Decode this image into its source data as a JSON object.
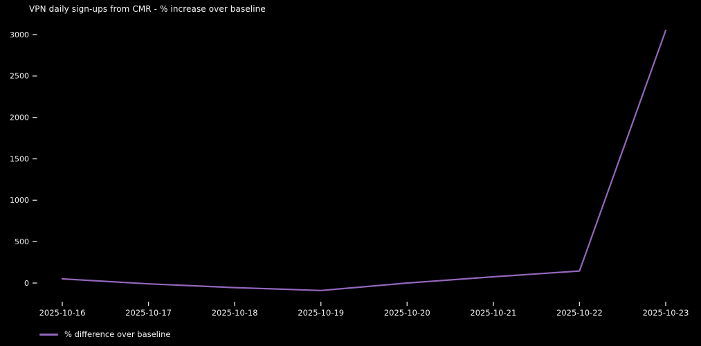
{
  "chart": {
    "title": "VPN daily sign-ups from CMR - % increase over baseline"
  },
  "legend": {
    "label": "% difference over baseline"
  },
  "colors": {
    "background": "#000000",
    "text": "#f0f0f0",
    "tick": "#d9d9d9",
    "line": "#9467bd"
  },
  "chart_data": {
    "type": "line",
    "title": "VPN daily sign-ups from CMR - % increase over baseline",
    "categories": [
      "2025-10-16",
      "2025-10-17",
      "2025-10-18",
      "2025-10-19",
      "2025-10-20",
      "2025-10-21",
      "2025-10-22",
      "2025-10-23"
    ],
    "series": [
      {
        "name": "% difference over baseline",
        "color": "#9467bd",
        "values": [
          50,
          -10,
          -55,
          -90,
          0,
          75,
          145,
          3050
        ]
      }
    ],
    "xlabel": "",
    "ylabel": "",
    "yticks": [
      0,
      500,
      1000,
      1500,
      2000,
      2500,
      3000
    ],
    "ylim": [
      -150,
      3150
    ],
    "grid": false,
    "legend_position": "lower-left",
    "background": "#000000"
  }
}
